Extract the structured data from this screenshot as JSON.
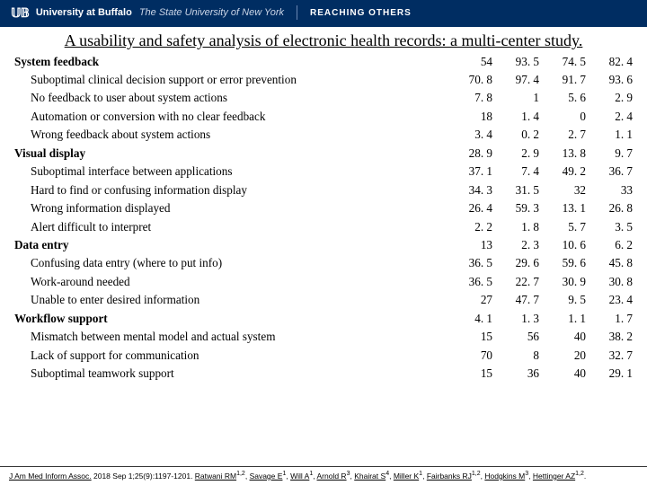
{
  "header": {
    "logo_text": "𝕌𝔹",
    "university": "University at Buffalo",
    "system": "The State University of New York",
    "tagline": "REACHING OTHERS"
  },
  "title": "A usability and safety analysis of electronic health records: a multi-center study.",
  "table": {
    "rows": [
      {
        "type": "cat",
        "label": "System feedback",
        "v": [
          "54",
          "93. 5",
          "74. 5",
          "82. 4"
        ]
      },
      {
        "type": "sub",
        "label": "Suboptimal clinical decision support or error prevention",
        "v": [
          "70. 8",
          "97. 4",
          "91. 7",
          "93. 6"
        ]
      },
      {
        "type": "sub",
        "label": "No feedback to user about system actions",
        "v": [
          "7. 8",
          "1",
          "5. 6",
          "2. 9"
        ]
      },
      {
        "type": "sub",
        "label": "Automation or conversion with no clear feedback",
        "v": [
          "18",
          "1. 4",
          "0",
          "2. 4"
        ]
      },
      {
        "type": "sub",
        "label": "Wrong feedback about system actions",
        "v": [
          "3. 4",
          "0. 2",
          "2. 7",
          "1. 1"
        ]
      },
      {
        "type": "cat",
        "label": "Visual display",
        "v": [
          "28. 9",
          "2. 9",
          "13. 8",
          "9. 7"
        ]
      },
      {
        "type": "sub",
        "label": "Suboptimal interface between applications",
        "v": [
          "37. 1",
          "7. 4",
          "49. 2",
          "36. 7"
        ]
      },
      {
        "type": "sub",
        "label": "Hard to find or confusing information display",
        "v": [
          "34. 3",
          "31. 5",
          "32",
          "33"
        ]
      },
      {
        "type": "sub",
        "label": "Wrong information displayed",
        "v": [
          "26. 4",
          "59. 3",
          "13. 1",
          "26. 8"
        ]
      },
      {
        "type": "sub",
        "label": "Alert difficult to interpret",
        "v": [
          "2. 2",
          "1. 8",
          "5. 7",
          "3. 5"
        ]
      },
      {
        "type": "cat",
        "label": "Data entry",
        "v": [
          "13",
          "2. 3",
          "10. 6",
          "6. 2"
        ]
      },
      {
        "type": "sub",
        "label": "Confusing data entry (where to put info)",
        "v": [
          "36. 5",
          "29. 6",
          "59. 6",
          "45. 8"
        ]
      },
      {
        "type": "sub",
        "label": "Work-around needed",
        "v": [
          "36. 5",
          "22. 7",
          "30. 9",
          "30. 8"
        ]
      },
      {
        "type": "sub",
        "label": "Unable to enter desired information",
        "v": [
          "27",
          "47. 7",
          "9. 5",
          "23. 4"
        ]
      },
      {
        "type": "cat",
        "label": "Workflow support",
        "v": [
          "4. 1",
          "1. 3",
          "1. 1",
          "1. 7"
        ]
      },
      {
        "type": "sub",
        "label": "Mismatch between mental model and actual system",
        "v": [
          "15",
          "56",
          "40",
          "38. 2"
        ]
      },
      {
        "type": "sub",
        "label": "Lack of support for communication",
        "v": [
          "70",
          "8",
          "20",
          "32. 7"
        ]
      },
      {
        "type": "sub",
        "label": "Suboptimal teamwork support",
        "v": [
          "15",
          "36",
          "40",
          "29. 1"
        ]
      }
    ]
  },
  "footer": {
    "journal": "J Am Med Inform Assoc.",
    "cite": " 2018 Sep 1;25(9):1197-1201. ",
    "authors": [
      {
        "n": "Ratwani RM",
        "s": "1,2"
      },
      {
        "n": "Savage E",
        "s": "1"
      },
      {
        "n": "Will A",
        "s": "1"
      },
      {
        "n": "Arnold R",
        "s": "3"
      },
      {
        "n": "Khairat S",
        "s": "4"
      },
      {
        "n": "Miller K",
        "s": "1"
      },
      {
        "n": "Fairbanks RJ",
        "s": "1,2"
      },
      {
        "n": "Hodgkins M",
        "s": "3"
      },
      {
        "n": "Hettinger AZ",
        "s": "1,2"
      }
    ]
  }
}
